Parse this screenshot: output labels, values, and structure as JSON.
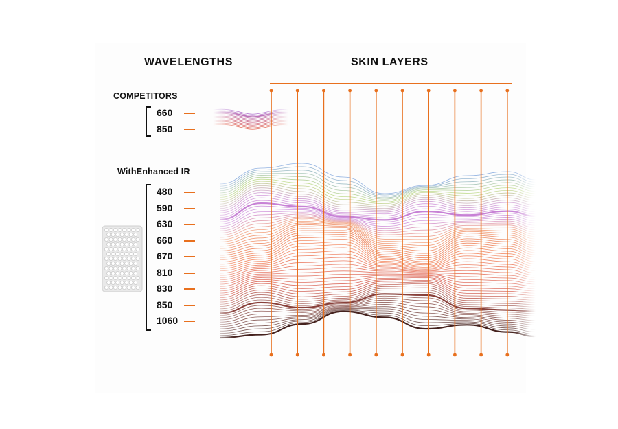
{
  "headings": {
    "wavelengths": "WAVELENGTHS",
    "skin_layers": "SKIN LAYERS"
  },
  "competitors": {
    "label": "COMPETITORS",
    "wavelengths": [
      "660",
      "850"
    ]
  },
  "enhanced": {
    "label": "WithEnhanced IR",
    "wavelengths": [
      "480",
      "590",
      "630",
      "660",
      "670",
      "810",
      "830",
      "850",
      "1060"
    ]
  },
  "colors": {
    "accent": "#e8701e",
    "text": "#111111"
  },
  "layer_line_count": 10
}
